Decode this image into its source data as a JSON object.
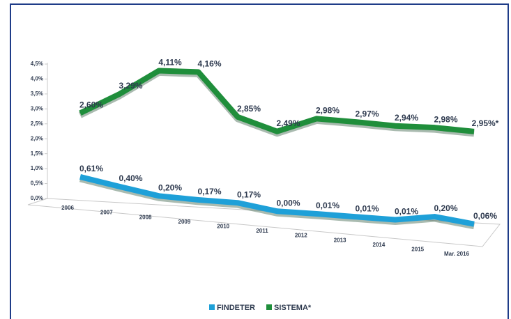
{
  "chart_data": {
    "type": "line",
    "categories": [
      "2006",
      "2007",
      "2008",
      "2009",
      "2010",
      "2011",
      "2012",
      "2013",
      "2014",
      "2015",
      "Mar. 2016"
    ],
    "series": [
      {
        "name": "FINDETER",
        "color": "#1ea0d8",
        "values": [
          0.61,
          0.4,
          0.2,
          0.17,
          0.17,
          0.0,
          0.01,
          0.01,
          0.01,
          0.2,
          0.06
        ],
        "value_labels": [
          "0,61%",
          "0,40%",
          "0,20%",
          "0,17%",
          "0,17%",
          "0,00%",
          "0,01%",
          "0,01%",
          "0,01%",
          "0,20%",
          "0,06%"
        ]
      },
      {
        "name": "SISTEMA*",
        "color": "#1f8e3b",
        "values": [
          2.6,
          3.29,
          4.11,
          4.16,
          2.85,
          2.49,
          2.98,
          2.97,
          2.94,
          2.98,
          2.95
        ],
        "value_labels": [
          "2,60%",
          "3,29%",
          "4,11%",
          "4,16%",
          "2,85%",
          "2,49%",
          "2,98%",
          "2,97%",
          "2,94%",
          "2,98%",
          "2,95%*"
        ]
      }
    ],
    "ylim": [
      0,
      4.5
    ],
    "yticks": [
      {
        "value": 0,
        "label": "0,0%"
      },
      {
        "value": 0.5,
        "label": "0,5%"
      },
      {
        "value": 1,
        "label": "1,0%"
      },
      {
        "value": 1.5,
        "label": "1,5%"
      },
      {
        "value": 2,
        "label": "2,0%"
      },
      {
        "value": 2.5,
        "label": "2,5%"
      },
      {
        "value": 3,
        "label": "3,0%"
      },
      {
        "value": 3.5,
        "label": "3,5%"
      },
      {
        "value": 4,
        "label": "4,0%"
      },
      {
        "value": 4.5,
        "label": "4,5%"
      }
    ],
    "legend": "bottom"
  }
}
